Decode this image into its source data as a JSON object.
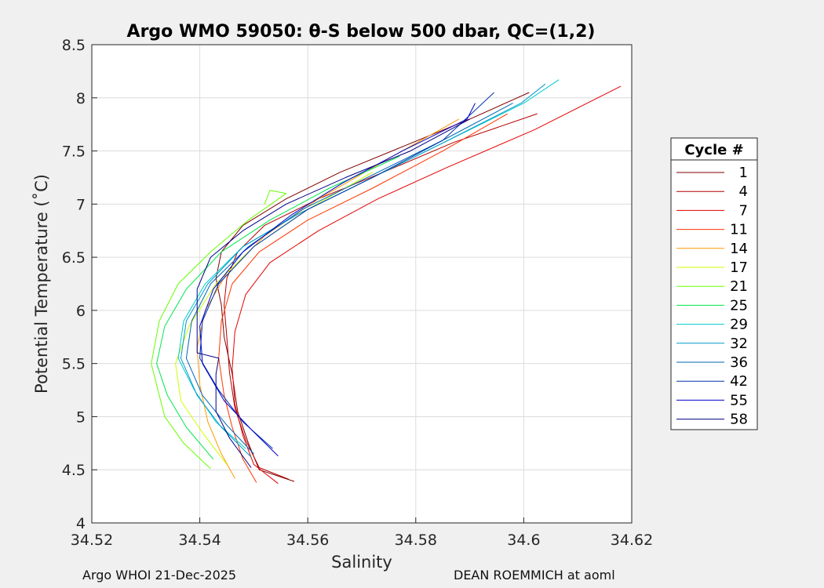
{
  "chart_data": {
    "type": "line",
    "title": "Argo WMO 59050: θ-S below 500 dbar,  QC=(1,2)",
    "xlabel": "Salinity",
    "ylabel": "Potential Temperature (˚C)",
    "xlim": [
      34.52,
      34.62
    ],
    "ylim": [
      4,
      8.5
    ],
    "xticks": [
      "34.52",
      "34.54",
      "34.56",
      "34.58",
      "34.6",
      "34.62"
    ],
    "yticks": [
      "4",
      "4.5",
      "5",
      "5.5",
      "6",
      "6.5",
      "7",
      "7.5",
      "8",
      "8.5"
    ],
    "grid": true,
    "legend": {
      "title": "Cycle #",
      "position": "outside-right"
    },
    "series": [
      {
        "name": "1",
        "color": "#800000",
        "x": [
          34.5575,
          34.551,
          34.549,
          34.547,
          34.546,
          34.5445,
          34.544,
          34.543,
          34.544,
          34.548,
          34.556,
          34.566,
          34.578,
          34.59,
          34.601
        ],
        "y": [
          4.39,
          4.5,
          4.75,
          5.05,
          5.4,
          5.75,
          6.05,
          6.3,
          6.55,
          6.8,
          7.05,
          7.3,
          7.55,
          7.8,
          8.05
        ]
      },
      {
        "name": "4",
        "color": "#b30000",
        "x": [
          34.5565,
          34.551,
          34.5485,
          34.5465,
          34.5455,
          34.545,
          34.5445,
          34.545,
          34.547,
          34.552,
          34.562,
          34.574,
          34.587,
          34.6025
        ],
        "y": [
          4.41,
          4.52,
          4.78,
          5.08,
          5.42,
          5.75,
          6.05,
          6.3,
          6.55,
          6.8,
          7.05,
          7.3,
          7.58,
          7.85
        ]
      },
      {
        "name": "7",
        "color": "#e60000",
        "x": [
          34.5545,
          34.55,
          34.548,
          34.5465,
          34.546,
          34.5465,
          34.5485,
          34.553,
          34.562,
          34.573,
          34.586,
          34.602,
          34.618
        ],
        "y": [
          4.37,
          4.55,
          4.82,
          5.12,
          5.45,
          5.8,
          6.15,
          6.45,
          6.75,
          7.05,
          7.35,
          7.7,
          8.11
        ]
      },
      {
        "name": "11",
        "color": "#ff3300",
        "x": [
          34.5505,
          34.548,
          34.546,
          34.5445,
          34.5435,
          34.544,
          34.546,
          34.551,
          34.56,
          34.572,
          34.585,
          34.597
        ],
        "y": [
          4.38,
          4.6,
          4.9,
          5.2,
          5.55,
          5.9,
          6.25,
          6.55,
          6.85,
          7.15,
          7.5,
          7.85
        ]
      },
      {
        "name": "14",
        "color": "#ff9900",
        "x": [
          34.5465,
          34.544,
          34.5415,
          34.54,
          34.5395,
          34.541,
          34.545,
          34.552,
          34.562,
          34.574,
          34.588
        ],
        "y": [
          4.42,
          4.65,
          4.95,
          5.3,
          5.65,
          6.0,
          6.35,
          6.7,
          7.05,
          7.4,
          7.8
        ]
      },
      {
        "name": "17",
        "color": "#ccff00",
        "x": [
          34.545,
          34.5405,
          34.5365,
          34.5355,
          34.538,
          34.543,
          34.55,
          34.56,
          34.572
        ],
        "y": [
          4.55,
          4.85,
          5.15,
          5.5,
          5.85,
          6.25,
          6.6,
          6.95,
          7.3
        ]
      },
      {
        "name": "21",
        "color": "#66ff00",
        "x": [
          34.542,
          34.537,
          34.5335,
          34.531,
          34.5325,
          34.536,
          34.542,
          34.549,
          34.556,
          34.553,
          34.552
        ],
        "y": [
          4.51,
          4.75,
          5.0,
          5.5,
          5.9,
          6.25,
          6.55,
          6.85,
          7.1,
          7.13,
          7.0
        ]
      },
      {
        "name": "25",
        "color": "#00e64d",
        "x": [
          34.5425,
          34.5375,
          34.534,
          34.532,
          34.5335,
          34.5375,
          34.544,
          34.553,
          34.564,
          34.577
        ],
        "y": [
          4.6,
          4.9,
          5.2,
          5.5,
          5.85,
          6.2,
          6.55,
          6.85,
          7.15,
          7.45
        ]
      },
      {
        "name": "29",
        "color": "#00cccc",
        "x": [
          34.5485,
          34.543,
          34.539,
          34.536,
          34.537,
          34.541,
          34.548,
          34.558,
          34.57,
          34.584,
          34.6,
          34.6065
        ],
        "y": [
          4.7,
          4.95,
          5.25,
          5.55,
          5.9,
          6.25,
          6.6,
          6.9,
          7.2,
          7.55,
          7.95,
          8.17
        ]
      },
      {
        "name": "32",
        "color": "#0099cc",
        "x": [
          34.5495,
          34.544,
          34.5395,
          34.5365,
          34.5375,
          34.5415,
          34.548,
          34.558,
          34.57,
          34.584,
          34.5995,
          34.604
        ],
        "y": [
          4.62,
          4.9,
          5.2,
          5.55,
          5.9,
          6.25,
          6.6,
          6.9,
          7.2,
          7.55,
          7.95,
          8.13
        ]
      },
      {
        "name": "36",
        "color": "#0066b3",
        "x": [
          34.55,
          34.545,
          34.5405,
          34.5375,
          34.5385,
          34.542,
          34.549,
          34.559,
          34.571,
          34.585,
          34.598
        ],
        "y": [
          4.65,
          4.92,
          5.2,
          5.55,
          5.9,
          6.25,
          6.6,
          6.95,
          7.25,
          7.6,
          7.95
        ]
      },
      {
        "name": "42",
        "color": "#0033aa",
        "x": [
          34.5535,
          34.548,
          34.5435,
          34.54,
          34.5405,
          34.5435,
          34.55,
          34.56,
          34.572,
          34.585,
          34.5945
        ],
        "y": [
          4.7,
          4.95,
          5.25,
          5.55,
          5.9,
          6.25,
          6.6,
          6.95,
          7.25,
          7.6,
          8.05
        ]
      },
      {
        "name": "55",
        "color": "#0000cc",
        "x": [
          34.5545,
          34.5495,
          34.5445,
          34.5405,
          34.54,
          34.5425,
          34.548,
          34.557,
          34.5665,
          34.5775,
          34.5895,
          34.591
        ],
        "y": [
          4.63,
          4.88,
          5.15,
          5.5,
          5.85,
          6.2,
          6.55,
          6.9,
          7.2,
          7.5,
          7.8,
          7.95
        ]
      },
      {
        "name": "58",
        "color": "#000088",
        "x": [
          34.5495,
          34.5455,
          34.543,
          34.543,
          34.5435,
          34.5395,
          34.5395,
          34.542,
          34.548,
          34.556,
          34.567,
          34.579,
          34.59
        ],
        "y": [
          4.52,
          4.8,
          5.05,
          5.4,
          5.55,
          5.6,
          6.2,
          6.5,
          6.75,
          7.0,
          7.25,
          7.5,
          7.8
        ]
      }
    ]
  },
  "footer": {
    "left": "Argo WHOI 21-Dec-2025",
    "right": "DEAN ROEMMICH at aoml"
  }
}
